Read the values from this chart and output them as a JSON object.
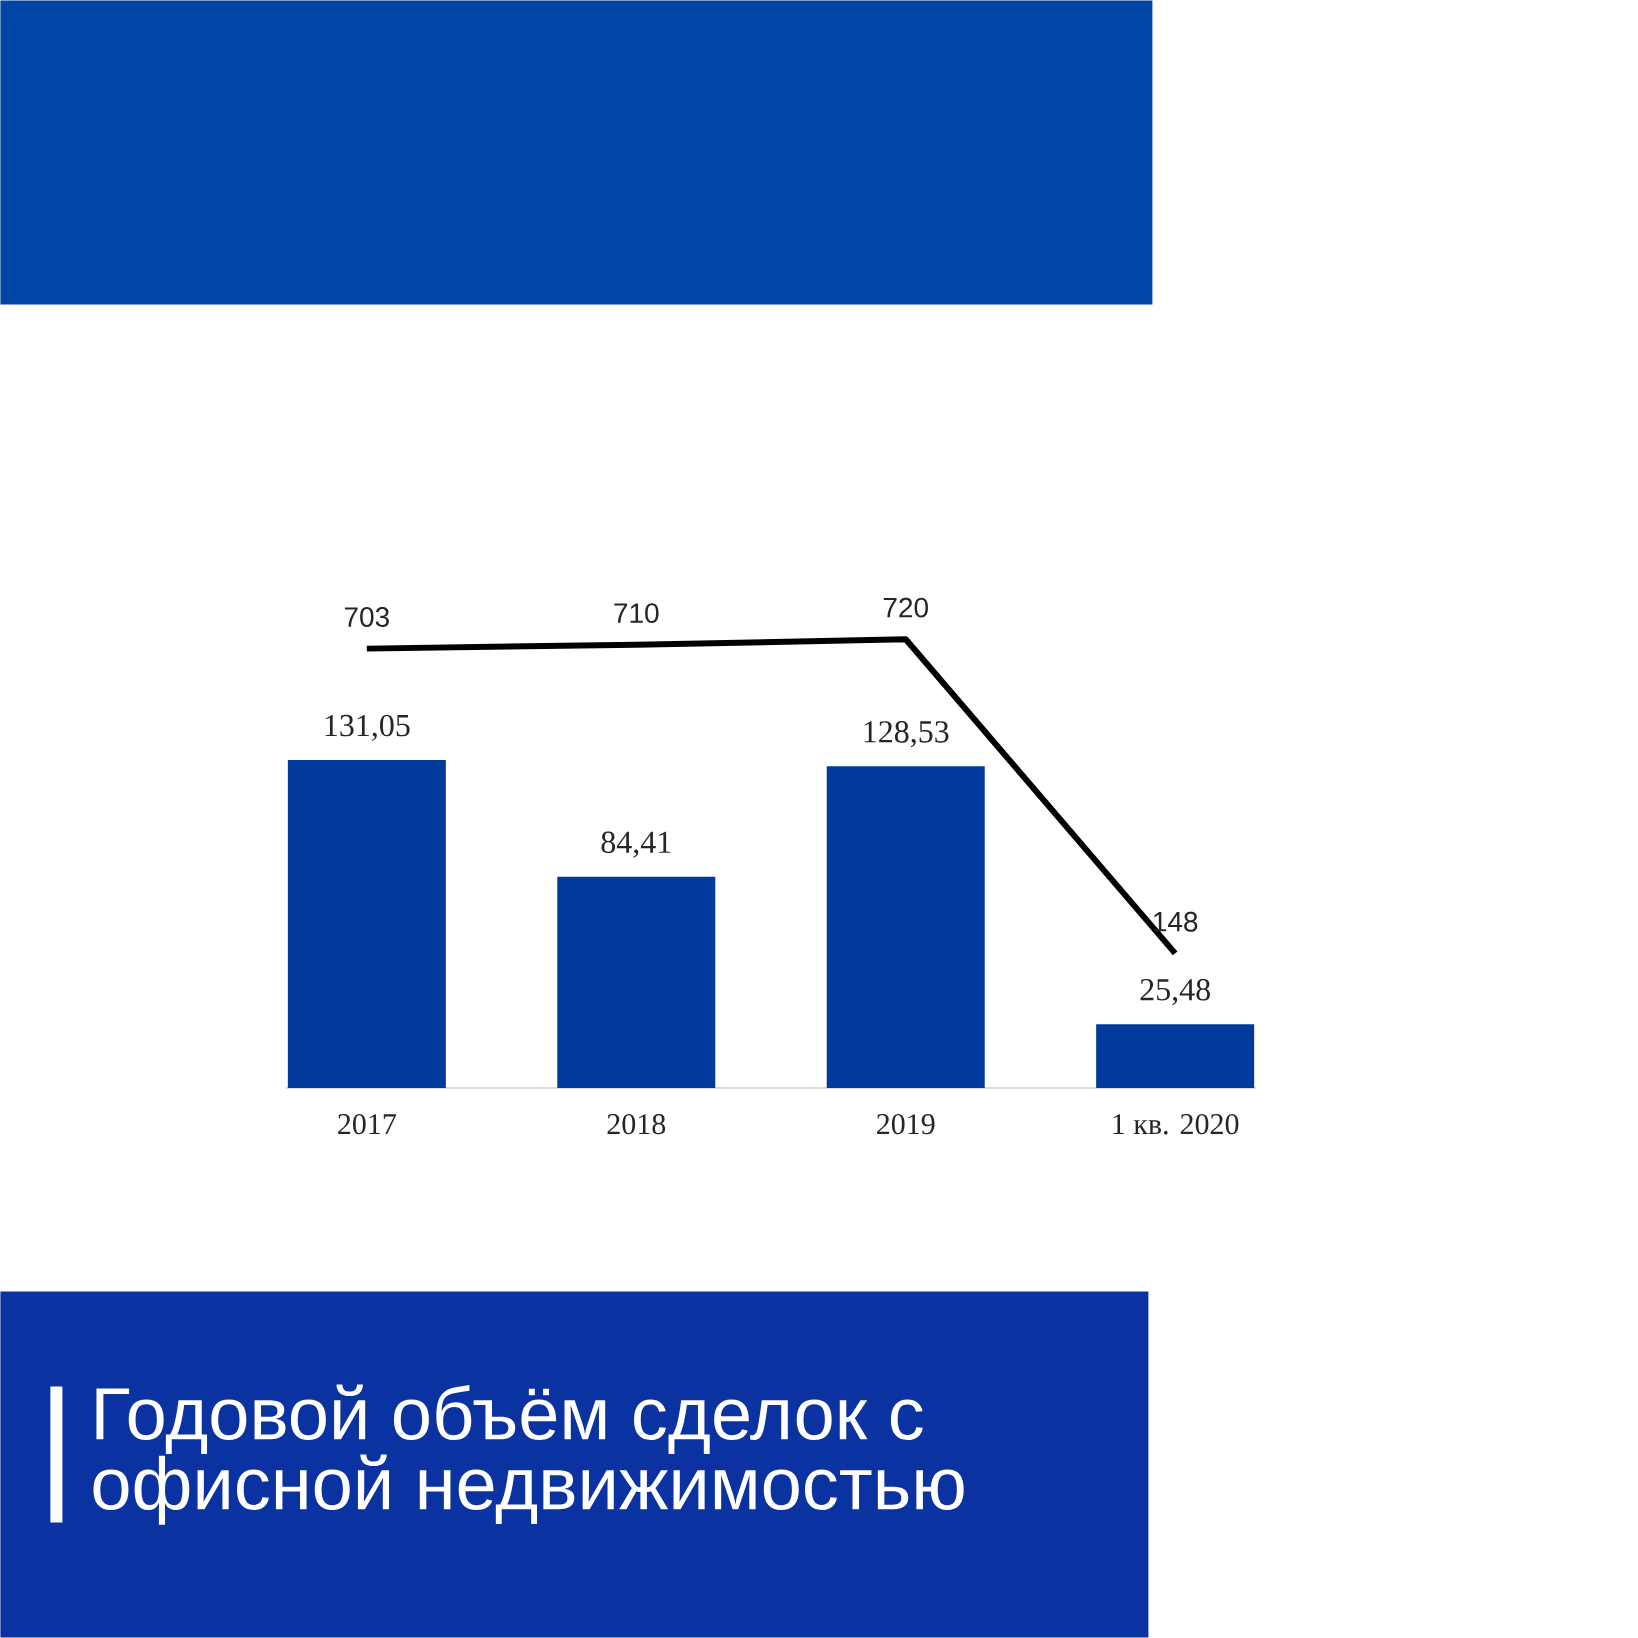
{
  "chart_data": {
    "type": "bar",
    "title": "Годовой объём сделок с офисной недвижимостью",
    "categories": [
      "2017",
      "2018",
      "2019",
      "1 кв. 2020"
    ],
    "series": [
      {
        "type": "bar",
        "color": "#003a9c",
        "values": [
          131.05,
          84.41,
          128.53,
          25.48
        ],
        "value_labels": [
          "131,05",
          "84,41",
          "128,53",
          "25,48"
        ]
      },
      {
        "type": "line",
        "axis": "y2",
        "color": "#000000",
        "values": [
          703,
          710,
          720,
          148
        ],
        "value_labels": [
          "703",
          "710",
          "720",
          "148"
        ]
      }
    ]
  }
}
